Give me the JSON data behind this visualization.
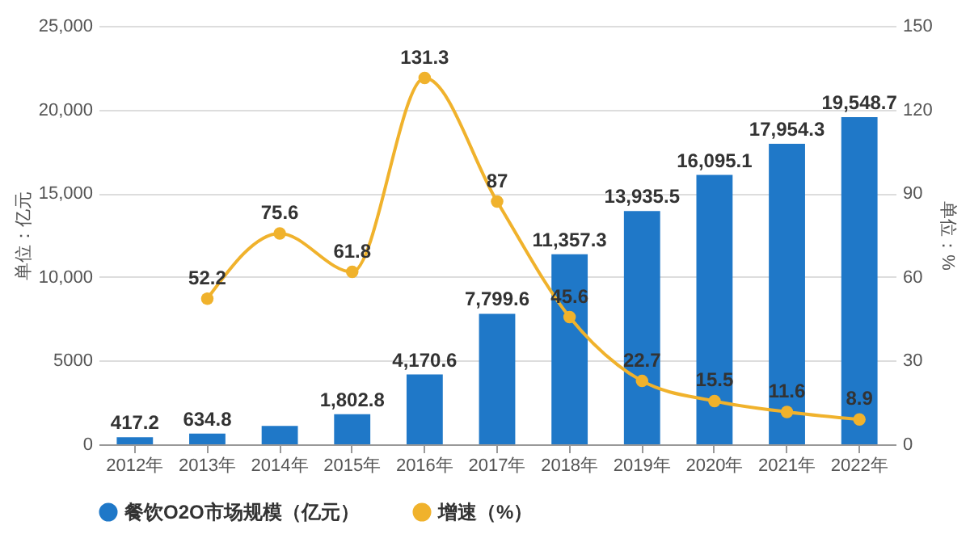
{
  "chart_data": {
    "type": "bar",
    "categories": [
      "2012年",
      "2013年",
      "2014年",
      "2015年",
      "2016年",
      "2017年",
      "2018年",
      "2019年",
      "2020年",
      "2021年",
      "2022年"
    ],
    "ylabel": "单位：亿元",
    "y2label": "单位：%",
    "ylim": [
      0,
      25000
    ],
    "yticks": [
      0,
      5000,
      {
        "value": 10000,
        "label": "10,000"
      },
      {
        "value": 15000,
        "label": "15,000"
      },
      {
        "value": 20000,
        "label": "20,000"
      },
      {
        "value": 25000,
        "label": "25,000"
      }
    ],
    "y2lim": [
      0,
      150
    ],
    "y2ticks": [
      0,
      30,
      60,
      90,
      120,
      150
    ],
    "grid": "y",
    "legend": "bottom",
    "series": [
      {
        "name": "餐饮O2O市场规模（亿元）",
        "color": "#1f78c8",
        "values": [
          417.2,
          634.8,
          1100,
          1802.8,
          4170.6,
          7799.6,
          11357.3,
          13935.5,
          16095.1,
          17954.3,
          19548.7
        ],
        "value_labels": [
          "417.2",
          "634.8",
          null,
          "1,802.8",
          "4,170.6",
          "7,799.6",
          "11,357.3",
          "13,935.5",
          "16,095.1",
          "17,954.3",
          "19,548.7"
        ]
      },
      {
        "name": "增速（%）",
        "type": "line",
        "axis": "y2",
        "color": "#f0b22c",
        "marker": "circle",
        "values": [
          null,
          52.2,
          75.6,
          61.8,
          131.3,
          87,
          45.6,
          22.7,
          15.5,
          11.6,
          8.9
        ],
        "value_labels": [
          null,
          "52.2",
          "75.6",
          "61.8",
          "131.3",
          "87",
          "45.6",
          "22.7",
          "15.5",
          "11.6",
          "8.9"
        ]
      }
    ]
  }
}
